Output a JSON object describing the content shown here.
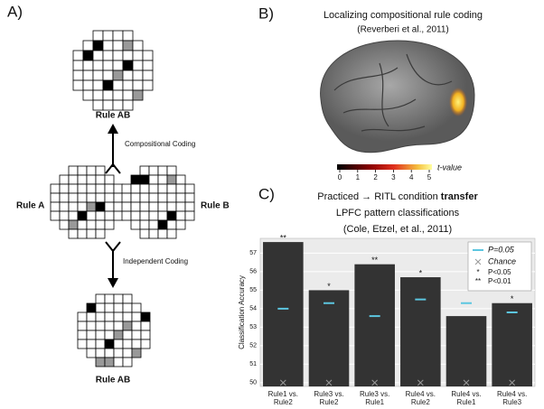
{
  "panel_a": {
    "label": "A)",
    "top_label": "Rule AB",
    "compositional": "Compositional Coding",
    "rule_a": "Rule A",
    "rule_b": "Rule B",
    "independent": "Independent Coding",
    "bottom_label": "Rule AB"
  },
  "panel_b": {
    "label": "B)",
    "title": "Localizing compositional rule coding",
    "citation": "(Reverberi et al., 2011)",
    "colorbar": {
      "ticks": [
        0,
        1,
        2,
        3,
        4,
        5
      ],
      "label": "t-value"
    }
  },
  "panel_c_label": "C)",
  "chart_data": {
    "type": "bar",
    "title": "Practiced → RITL condition",
    "title_bold": "transfer",
    "subtitle": "LPFC pattern classifications",
    "citation": "(Cole, Etzel, et al., 2011)",
    "ylabel": "Classification Accuracy",
    "categories": [
      "Rule1 vs.\nRule2",
      "Rule3 vs.\nRule2",
      "Rule3 vs.\nRule1",
      "Rule4 vs.\nRule2",
      "Rule4 vs.\nRule1",
      "Rule4 vs.\nRule3"
    ],
    "values": [
      57.6,
      55.0,
      56.4,
      55.7,
      53.6,
      54.3
    ],
    "color": "#333333",
    "significance": [
      "**",
      "*",
      "**",
      "*",
      null,
      "*"
    ],
    "threshold": {
      "name": "P=0.05",
      "color": "#5cc6e0",
      "values": [
        54.0,
        54.3,
        53.6,
        54.5,
        54.3,
        53.8
      ]
    },
    "chance": {
      "name": "Chance",
      "color": "#999999",
      "values": [
        50,
        50,
        50,
        50,
        50,
        50
      ]
    },
    "legend_items": [
      {
        "symbol": "*",
        "label": "P<0.05"
      },
      {
        "symbol": "**",
        "label": "P<0.01"
      }
    ],
    "legend": "top-right",
    "ylim": [
      49.8,
      57.8
    ],
    "yticks": [
      50,
      51,
      52,
      53,
      54,
      55,
      56,
      57
    ],
    "grid": true
  }
}
